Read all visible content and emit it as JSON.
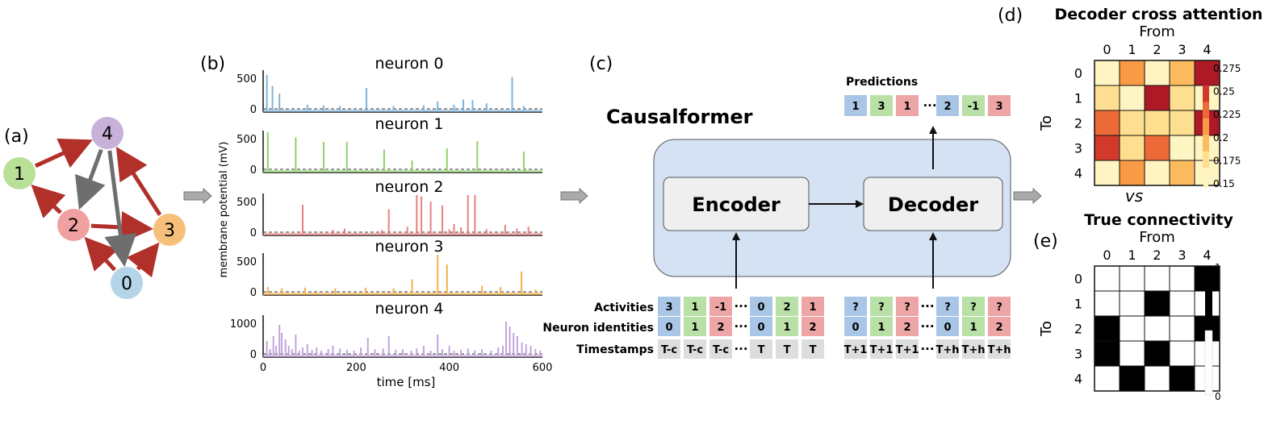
{
  "panel_labels": {
    "a": "(a)",
    "b": "(b)",
    "c": "(c)",
    "d": "(d)",
    "e": "(e)"
  },
  "graph": {
    "nodes": [
      {
        "id": "0",
        "color": "#b4d4e8"
      },
      {
        "id": "1",
        "color": "#b9e097"
      },
      {
        "id": "2",
        "color": "#f0a0a0"
      },
      {
        "id": "3",
        "color": "#f7c07a"
      },
      {
        "id": "4",
        "color": "#c7b1d9"
      }
    ],
    "edges": [
      {
        "from": "1",
        "to": "4",
        "color": "#b2302a"
      },
      {
        "from": "2",
        "to": "1",
        "color": "#b2302a"
      },
      {
        "from": "2",
        "to": "3",
        "color": "#b2302a"
      },
      {
        "from": "0",
        "to": "2",
        "color": "#b2302a"
      },
      {
        "from": "0",
        "to": "3",
        "color": "#b2302a"
      },
      {
        "from": "3",
        "to": "4",
        "color": "#b2302a"
      },
      {
        "from": "4",
        "to": "2",
        "color": "#6e6e6e"
      },
      {
        "from": "4",
        "to": "0",
        "color": "#6e6e6e"
      }
    ]
  },
  "traces": {
    "ylabel": "membrane potential (mV)",
    "xlabel": "time [ms]",
    "xticks": [
      "0",
      "200",
      "400",
      "600"
    ],
    "xlim": [
      0,
      600
    ],
    "panels": [
      {
        "title": "neuron 0",
        "color": "#7fb3da",
        "yticks": [
          "500",
          "0"
        ],
        "ymax": 500,
        "spikes": [
          [
            8,
            550
          ],
          [
            20,
            380
          ],
          [
            35,
            260
          ],
          [
            95,
            90
          ],
          [
            130,
            80
          ],
          [
            165,
            70
          ],
          [
            222,
            350
          ],
          [
            280,
            70
          ],
          [
            345,
            80
          ],
          [
            375,
            140
          ],
          [
            410,
            90
          ],
          [
            430,
            170
          ],
          [
            450,
            160
          ],
          [
            480,
            110
          ],
          [
            535,
            520
          ],
          [
            560,
            70
          ]
        ]
      },
      {
        "title": "neuron 1",
        "color": "#8fd16a",
        "yticks": [
          "500",
          "0"
        ],
        "ymax": 500,
        "spikes": [
          [
            10,
            600
          ],
          [
            70,
            520
          ],
          [
            130,
            450
          ],
          [
            180,
            450
          ],
          [
            260,
            330
          ],
          [
            320,
            160
          ],
          [
            395,
            350
          ],
          [
            460,
            460
          ],
          [
            560,
            300
          ]
        ]
      },
      {
        "title": "neuron 2",
        "color": "#ec7f7f",
        "yticks": [
          "500",
          "0"
        ],
        "ymax": 500,
        "spikes": [
          [
            85,
            450
          ],
          [
            150,
            60
          ],
          [
            175,
            80
          ],
          [
            255,
            60
          ],
          [
            270,
            380
          ],
          [
            310,
            110
          ],
          [
            330,
            600
          ],
          [
            340,
            580
          ],
          [
            360,
            500
          ],
          [
            385,
            440
          ],
          [
            400,
            70
          ],
          [
            410,
            150
          ],
          [
            425,
            100
          ],
          [
            440,
            620
          ],
          [
            455,
            600
          ],
          [
            480,
            70
          ],
          [
            520,
            140
          ],
          [
            545,
            80
          ],
          [
            570,
            110
          ]
        ]
      },
      {
        "title": "neuron 3",
        "color": "#f5b04a",
        "yticks": [
          "500",
          "0"
        ],
        "ymax": 500,
        "spikes": [
          [
            10,
            100
          ],
          [
            40,
            80
          ],
          [
            90,
            90
          ],
          [
            155,
            80
          ],
          [
            220,
            90
          ],
          [
            280,
            80
          ],
          [
            320,
            220
          ],
          [
            375,
            720
          ],
          [
            395,
            450
          ],
          [
            470,
            120
          ],
          [
            510,
            100
          ],
          [
            555,
            340
          ],
          [
            585,
            60
          ]
        ]
      },
      {
        "title": "neuron 4",
        "color": "#c3a4dd",
        "yticks": [
          "1000",
          "0"
        ],
        "ymax": 1000,
        "spikes": [
          [
            8,
            450
          ],
          [
            15,
            200
          ],
          [
            22,
            600
          ],
          [
            28,
            300
          ],
          [
            35,
            950
          ],
          [
            40,
            700
          ],
          [
            48,
            500
          ],
          [
            55,
            300
          ],
          [
            62,
            200
          ],
          [
            70,
            650
          ],
          [
            78,
            150
          ],
          [
            85,
            250
          ],
          [
            95,
            350
          ],
          [
            105,
            180
          ],
          [
            115,
            250
          ],
          [
            125,
            150
          ],
          [
            140,
            200
          ],
          [
            150,
            300
          ],
          [
            165,
            220
          ],
          [
            180,
            180
          ],
          [
            195,
            150
          ],
          [
            210,
            250
          ],
          [
            225,
            550
          ],
          [
            240,
            200
          ],
          [
            258,
            220
          ],
          [
            270,
            600
          ],
          [
            285,
            180
          ],
          [
            300,
            200
          ],
          [
            318,
            150
          ],
          [
            330,
            220
          ],
          [
            345,
            300
          ],
          [
            360,
            150
          ],
          [
            375,
            650
          ],
          [
            385,
            200
          ],
          [
            400,
            300
          ],
          [
            410,
            150
          ],
          [
            425,
            180
          ],
          [
            440,
            220
          ],
          [
            455,
            160
          ],
          [
            470,
            200
          ],
          [
            490,
            150
          ],
          [
            505,
            250
          ],
          [
            515,
            300
          ],
          [
            522,
            1050
          ],
          [
            530,
            900
          ],
          [
            538,
            700
          ],
          [
            546,
            600
          ],
          [
            556,
            400
          ],
          [
            565,
            350
          ],
          [
            575,
            300
          ],
          [
            585,
            200
          ],
          [
            595,
            150
          ]
        ]
      }
    ]
  },
  "model": {
    "title": "Causalformer",
    "encoder": "Encoder",
    "decoder": "Decoder",
    "predictions_label": "Predictions",
    "row_labels": [
      "Activities",
      "Neuron identities",
      "Timestamps"
    ],
    "colors": {
      "blue": "#a9c6e6",
      "green": "#b9e0a6",
      "red": "#eda5a5",
      "gray": "#dddddd",
      "box": "#d4e2f3",
      "inner": "#efefef"
    },
    "ellipsis": "···",
    "predictions": [
      {
        "text": "1",
        "c": "blue"
      },
      {
        "text": "3",
        "c": "green"
      },
      {
        "text": "1",
        "c": "red"
      },
      {
        "text": "2",
        "c": "blue"
      },
      {
        "text": "-1",
        "c": "green"
      },
      {
        "text": "3",
        "c": "red"
      }
    ],
    "encoder_input": {
      "activities": [
        "3",
        "1",
        "-1",
        "0",
        "2",
        "1"
      ],
      "identities": [
        "0",
        "1",
        "2",
        "0",
        "1",
        "2"
      ],
      "timestamps": [
        "T-c",
        "T-c",
        "T-c",
        "T",
        "T",
        "T"
      ]
    },
    "decoder_input": {
      "activities": [
        "?",
        "?",
        "?",
        "?",
        "?",
        "?"
      ],
      "identities": [
        "0",
        "1",
        "2",
        "0",
        "1",
        "2"
      ],
      "timestamps": [
        "T+1",
        "T+1",
        "T+1",
        "T+h",
        "T+h",
        "T+h"
      ]
    }
  },
  "chart_data": [
    {
      "type": "heatmap",
      "title": "Decoder cross attention",
      "xlabel": "From",
      "ylabel": "To",
      "x": [
        "0",
        "1",
        "2",
        "3",
        "4"
      ],
      "y": [
        "0",
        "1",
        "2",
        "3",
        "4"
      ],
      "values": [
        [
          0.15,
          0.205,
          0.15,
          0.19,
          0.27
        ],
        [
          0.165,
          0.155,
          0.27,
          0.175,
          0.155
        ],
        [
          0.24,
          0.175,
          0.18,
          0.165,
          0.27
        ],
        [
          0.245,
          0.17,
          0.235,
          0.16,
          0.155
        ],
        [
          0.155,
          0.21,
          0.155,
          0.2,
          0.155
        ]
      ],
      "colorbar": {
        "ticks": [
          "0.275",
          "0.25",
          "0.225",
          "0.2",
          "0.175",
          "0.15"
        ],
        "min": 0.15,
        "max": 0.275
      },
      "colormap": [
        "#fff5c3",
        "#fedf8f",
        "#fdbb5f",
        "#f99a46",
        "#ed6a38",
        "#d13a2b",
        "#ad1a26"
      ]
    },
    {
      "type": "heatmap",
      "title": "True connectivity",
      "xlabel": "From",
      "ylabel": "To",
      "x": [
        "0",
        "1",
        "2",
        "3",
        "4"
      ],
      "y": [
        "0",
        "1",
        "2",
        "3",
        "4"
      ],
      "values": [
        [
          0,
          0,
          0,
          0,
          1
        ],
        [
          0,
          0,
          1,
          0,
          0
        ],
        [
          1,
          0,
          0,
          0,
          1
        ],
        [
          1,
          0,
          1,
          0,
          0
        ],
        [
          0,
          1,
          0,
          1,
          0
        ]
      ],
      "colorbar": {
        "ticks": [
          "1",
          "0"
        ],
        "min": 0,
        "max": 1
      }
    }
  ],
  "vs_label": "vs"
}
